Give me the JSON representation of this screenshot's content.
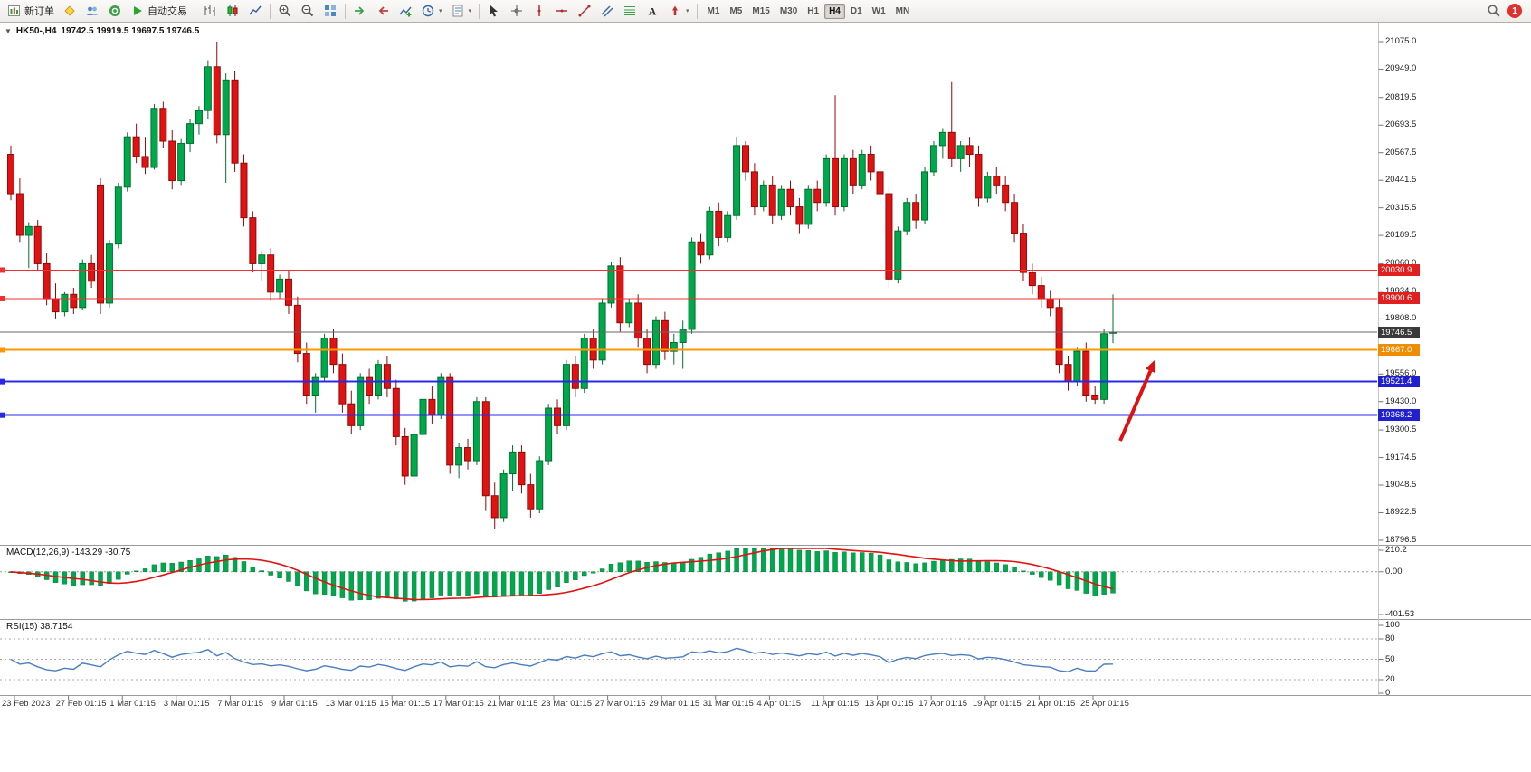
{
  "toolbar": {
    "new_order_label": "新订单",
    "auto_trading_label": "自动交易",
    "timeframes": [
      "M1",
      "M5",
      "M15",
      "M30",
      "H1",
      "H4",
      "D1",
      "W1",
      "MN"
    ],
    "active_timeframe": "H4",
    "notification_count": "1",
    "icons": [
      "new-order-icon",
      "metaeditor-icon",
      "profiles-icon",
      "community-icon",
      "auto-trading-icon",
      "bar-chart-icon",
      "candle-chart-icon",
      "line-chart-icon",
      "zoom-in-icon",
      "zoom-out-icon",
      "tile-windows-icon",
      "auto-scroll-icon",
      "chart-shift-icon",
      "indicators-icon",
      "periods-icon",
      "templates-icon",
      "cursor-icon",
      "crosshair-icon",
      "vertical-line-icon",
      "horizontal-line-icon",
      "trendline-icon",
      "channel-icon",
      "fibonacci-icon",
      "text-icon",
      "arrows-icon",
      "search-icon"
    ]
  },
  "chart": {
    "symbol_period": "HK50-,H4",
    "ohlc_text": "19742.5 19919.5 19697.5 19746.5"
  },
  "chart_data": {
    "type": "candlestick",
    "symbol": "HK50-",
    "period": "H4",
    "ohlc": {
      "open": 19742.5,
      "high": 19919.5,
      "low": 19697.5,
      "close": 19746.5
    },
    "price_axis_labels": [
      "21075.0",
      "20949.0",
      "20819.5",
      "20693.5",
      "20567.5",
      "20441.5",
      "20315.5",
      "20189.5",
      "20060.0",
      "19934.0",
      "19808.0",
      "19556.0",
      "19430.0",
      "19300.5",
      "19174.5",
      "19048.5",
      "18922.5",
      "18796.5"
    ],
    "horizontal_lines": [
      {
        "name": "resistance-line-upper",
        "price": 20030.9,
        "label": "20030.9",
        "color": "#f03030",
        "width": 1,
        "badge_color": "#e02020",
        "marker": true
      },
      {
        "name": "resistance-line-lower",
        "price": 19900.6,
        "label": "19900.6",
        "color": "#f03030",
        "width": 1,
        "badge_color": "#e02020",
        "marker": true
      },
      {
        "name": "current-price-line",
        "price": 19746.5,
        "label": "19746.5",
        "color": "#666666",
        "width": 1,
        "badge_color": "#3a3a3a",
        "marker": false
      },
      {
        "name": "pivot-line-orange",
        "price": 19667.0,
        "label": "19667.0",
        "color": "#ff9900",
        "width": 2,
        "badge_color": "#f08c00",
        "marker": true
      },
      {
        "name": "support-line-upper",
        "price": 19521.4,
        "label": "19521.4",
        "color": "#2828e8",
        "width": 2,
        "badge_color": "#2020d0",
        "marker": true
      },
      {
        "name": "support-line-lower",
        "price": 19368.2,
        "label": "19368.2",
        "color": "#2828e8",
        "width": 2,
        "badge_color": "#2020d0",
        "marker": true
      }
    ],
    "date_labels": [
      "23 Feb 2023",
      "27 Feb 01:15",
      "1 Mar 01:15",
      "3 Mar 01:15",
      "7 Mar 01:15",
      "9 Mar 01:15",
      "13 Mar 01:15",
      "15 Mar 01:15",
      "17 Mar 01:15",
      "21 Mar 01:15",
      "23 Mar 01:15",
      "27 Mar 01:15",
      "29 Mar 01:15",
      "31 Mar 01:15",
      "4 Apr 01:15",
      "11 Apr 01:15",
      "13 Apr 01:15",
      "17 Apr 01:15",
      "19 Apr 01:15",
      "21 Apr 01:15",
      "25 Apr 01:15"
    ],
    "macd": {
      "label": "MACD(12,26,9)",
      "values_text": "-143.29 -30.75",
      "scale": [
        "210.2",
        "0.00",
        "-401.53"
      ],
      "fast": 12,
      "slow": 26,
      "signal": 9
    },
    "rsi": {
      "label": "RSI(15)",
      "value_text": "38.7154",
      "period": 15,
      "scale": [
        "100",
        "80",
        "50",
        "20",
        "0"
      ],
      "levels": [
        80,
        50,
        20
      ]
    },
    "candles": [
      [
        20560,
        20600,
        20350,
        20380
      ],
      [
        20380,
        20450,
        20160,
        20190
      ],
      [
        20190,
        20250,
        20040,
        20230
      ],
      [
        20230,
        20260,
        20030,
        20060
      ],
      [
        20060,
        20110,
        19870,
        19900
      ],
      [
        19900,
        19970,
        19810,
        19840
      ],
      [
        19840,
        19930,
        19820,
        19920
      ],
      [
        19920,
        19950,
        19830,
        19860
      ],
      [
        19860,
        20080,
        19850,
        20060
      ],
      [
        20060,
        20100,
        19950,
        19980
      ],
      [
        20420,
        20450,
        19830,
        19880
      ],
      [
        19880,
        20170,
        19860,
        20150
      ],
      [
        20150,
        20430,
        20130,
        20410
      ],
      [
        20410,
        20660,
        20390,
        20640
      ],
      [
        20640,
        20700,
        20520,
        20550
      ],
      [
        20550,
        20640,
        20470,
        20500
      ],
      [
        20500,
        20790,
        20490,
        20770
      ],
      [
        20770,
        20800,
        20590,
        20620
      ],
      [
        20620,
        20670,
        20400,
        20440
      ],
      [
        20440,
        20630,
        20420,
        20610
      ],
      [
        20610,
        20720,
        20570,
        20700
      ],
      [
        20700,
        20780,
        20650,
        20760
      ],
      [
        20760,
        20990,
        20720,
        20960
      ],
      [
        20960,
        21075,
        20610,
        20650
      ],
      [
        20650,
        20930,
        20430,
        20900
      ],
      [
        20900,
        20940,
        20480,
        20520
      ],
      [
        20520,
        20560,
        20230,
        20270
      ],
      [
        20270,
        20300,
        20020,
        20060
      ],
      [
        20060,
        20120,
        19980,
        20100
      ],
      [
        20100,
        20130,
        19890,
        19930
      ],
      [
        19930,
        20010,
        19900,
        19990
      ],
      [
        19990,
        20030,
        19830,
        19870
      ],
      [
        19870,
        19910,
        19610,
        19650
      ],
      [
        19650,
        19700,
        19420,
        19460
      ],
      [
        19460,
        19560,
        19380,
        19540
      ],
      [
        19540,
        19740,
        19520,
        19720
      ],
      [
        19720,
        19760,
        19560,
        19600
      ],
      [
        19600,
        19650,
        19380,
        19420
      ],
      [
        19420,
        19480,
        19280,
        19320
      ],
      [
        19320,
        19560,
        19300,
        19540
      ],
      [
        19540,
        19580,
        19420,
        19460
      ],
      [
        19460,
        19620,
        19440,
        19600
      ],
      [
        19600,
        19640,
        19450,
        19490
      ],
      [
        19490,
        19530,
        19230,
        19270
      ],
      [
        19270,
        19310,
        19050,
        19090
      ],
      [
        19090,
        19300,
        19070,
        19280
      ],
      [
        19280,
        19460,
        19260,
        19440
      ],
      [
        19440,
        19500,
        19330,
        19370
      ],
      [
        19370,
        19560,
        19350,
        19540
      ],
      [
        19540,
        19560,
        19100,
        19140
      ],
      [
        19140,
        19240,
        19080,
        19220
      ],
      [
        19220,
        19260,
        19120,
        19160
      ],
      [
        19160,
        19450,
        19140,
        19430
      ],
      [
        19430,
        19450,
        18930,
        19000
      ],
      [
        19000,
        19060,
        18850,
        18900
      ],
      [
        18900,
        19120,
        18880,
        19100
      ],
      [
        19100,
        19230,
        19020,
        19200
      ],
      [
        19200,
        19230,
        19010,
        19050
      ],
      [
        19050,
        19100,
        18900,
        18940
      ],
      [
        18940,
        19180,
        18920,
        19160
      ],
      [
        19160,
        19420,
        19140,
        19400
      ],
      [
        19400,
        19440,
        19280,
        19320
      ],
      [
        19320,
        19620,
        19300,
        19600
      ],
      [
        19600,
        19640,
        19450,
        19490
      ],
      [
        19490,
        19740,
        19470,
        19720
      ],
      [
        19720,
        19760,
        19580,
        19620
      ],
      [
        19620,
        19900,
        19600,
        19880
      ],
      [
        19880,
        20070,
        19860,
        20050
      ],
      [
        20050,
        20090,
        19750,
        19790
      ],
      [
        19790,
        19900,
        19770,
        19880
      ],
      [
        19880,
        19920,
        19680,
        19720
      ],
      [
        19720,
        19760,
        19560,
        19600
      ],
      [
        19600,
        19820,
        19580,
        19800
      ],
      [
        19800,
        19840,
        19620,
        19660
      ],
      [
        19660,
        19740,
        19600,
        19700
      ],
      [
        19700,
        19800,
        19580,
        19760
      ],
      [
        19760,
        20180,
        19740,
        20160
      ],
      [
        20160,
        20200,
        20060,
        20100
      ],
      [
        20100,
        20320,
        20080,
        20300
      ],
      [
        20300,
        20340,
        20140,
        20180
      ],
      [
        20180,
        20300,
        20160,
        20280
      ],
      [
        20280,
        20640,
        20260,
        20600
      ],
      [
        20600,
        20620,
        20440,
        20480
      ],
      [
        20480,
        20520,
        20280,
        20320
      ],
      [
        20320,
        20440,
        20300,
        20420
      ],
      [
        20420,
        20460,
        20240,
        20280
      ],
      [
        20280,
        20420,
        20260,
        20400
      ],
      [
        20400,
        20440,
        20280,
        20320
      ],
      [
        20320,
        20360,
        20200,
        20240
      ],
      [
        20240,
        20420,
        20220,
        20400
      ],
      [
        20400,
        20440,
        20300,
        20340
      ],
      [
        20340,
        20560,
        20320,
        20540
      ],
      [
        20540,
        20830,
        20280,
        20320
      ],
      [
        20320,
        20560,
        20300,
        20540
      ],
      [
        20540,
        20580,
        20380,
        20420
      ],
      [
        20420,
        20580,
        20400,
        20560
      ],
      [
        20560,
        20600,
        20440,
        20480
      ],
      [
        20480,
        20500,
        20340,
        20380
      ],
      [
        20380,
        20420,
        19950,
        19990
      ],
      [
        19990,
        20230,
        19970,
        20210
      ],
      [
        20210,
        20360,
        20190,
        20340
      ],
      [
        20340,
        20380,
        20220,
        20260
      ],
      [
        20260,
        20500,
        20240,
        20480
      ],
      [
        20480,
        20620,
        20460,
        20600
      ],
      [
        20600,
        20680,
        20540,
        20660
      ],
      [
        20660,
        20890,
        20500,
        20540
      ],
      [
        20540,
        20620,
        20480,
        20600
      ],
      [
        20600,
        20640,
        20500,
        20560
      ],
      [
        20560,
        20600,
        20320,
        20360
      ],
      [
        20360,
        20480,
        20340,
        20460
      ],
      [
        20460,
        20500,
        20380,
        20420
      ],
      [
        20420,
        20460,
        20300,
        20340
      ],
      [
        20340,
        20380,
        20160,
        20200
      ],
      [
        20200,
        20240,
        19980,
        20020
      ],
      [
        20020,
        20060,
        19920,
        19960
      ],
      [
        19960,
        20000,
        19860,
        19900
      ],
      [
        19900,
        19940,
        19820,
        19860
      ],
      [
        19860,
        19900,
        19560,
        19600
      ],
      [
        19600,
        19640,
        19480,
        19520
      ],
      [
        19520,
        19680,
        19500,
        19660
      ],
      [
        19660,
        19700,
        19430,
        19460
      ],
      [
        19460,
        19500,
        19420,
        19440
      ],
      [
        19440,
        19760,
        19420,
        19740
      ],
      [
        19742.5,
        19919.5,
        19697.5,
        19746.5
      ]
    ],
    "annotation": {
      "name": "red-arrow",
      "direction": "up-right",
      "from_xy": [
        1238,
        462
      ],
      "to_xy": [
        1277,
        372
      ]
    }
  },
  "colors": {
    "candle_up": "#00a84c",
    "candle_up_border": "#00702f",
    "candle_down": "#e01212",
    "candle_down_border": "#8f0a0a",
    "macd_histogram": "#00a84c",
    "macd_signal": "#e01212",
    "rsi_line": "#4a7ebf",
    "arrow": "#dd1111"
  }
}
